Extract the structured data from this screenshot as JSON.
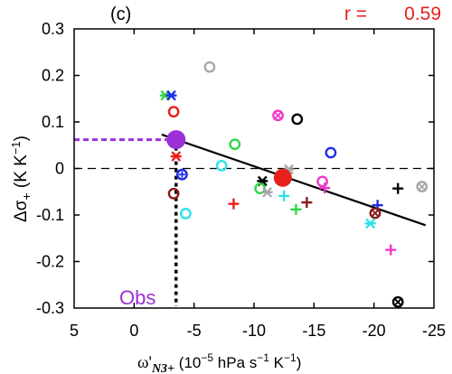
{
  "chart_data": {
    "type": "scatter",
    "panel_label": "(c)",
    "r_label": "r =",
    "r_value": "0.59",
    "r_color": "#e8201c",
    "ylabel_main": "Δσ",
    "ylabel_sub": "+",
    "ylabel_units": "(K K",
    "ylabel_units_sup": "−1",
    "ylabel_units_end": ")",
    "xlabel_main": "ω'",
    "xlabel_sub": "N3+",
    "xlabel_units": "(10",
    "xlabel_units_sup1": "−5",
    "xlabel_units_mid": " hPa s",
    "xlabel_units_sup2": "−1",
    "xlabel_units_end": " K",
    "xlabel_units_sup3": "−1",
    "xlabel_units_close": ")",
    "xlim": [
      5,
      -25
    ],
    "ylim": [
      -0.3,
      0.3
    ],
    "x_ticks": [
      5,
      0,
      -5,
      -10,
      -15,
      -20,
      -25
    ],
    "x_tick_labels": [
      "5",
      "0",
      "-5",
      "-10",
      "-15",
      "-20",
      "-25"
    ],
    "y_ticks": [
      -0.3,
      -0.2,
      -0.1,
      0,
      0.1,
      0.2,
      0.3
    ],
    "y_tick_labels": [
      "-0.3",
      "-0.2",
      "-0.1",
      "0",
      "0.1",
      "0.2",
      "0.3"
    ],
    "zero_line": true,
    "regression": {
      "x": [
        -2.3,
        -24.3
      ],
      "y": [
        0.073,
        -0.122
      ],
      "color": "#000000"
    },
    "obs": {
      "label": "Obs",
      "x": -3.5,
      "y": 0.062,
      "color": "#9b30d9",
      "lower_x": -3.5
    },
    "points": [
      {
        "x": -6.3,
        "y": 0.218,
        "marker": "o",
        "color": "#a8a8a8"
      },
      {
        "x": -2.6,
        "y": 0.157,
        "marker": "*",
        "color": "#2fd84a"
      },
      {
        "x": -3.1,
        "y": 0.157,
        "marker": "*",
        "color": "#1c2ee6"
      },
      {
        "x": -3.3,
        "y": 0.122,
        "marker": "o",
        "color": "#e8201c"
      },
      {
        "x": -12.0,
        "y": 0.114,
        "marker": "ox",
        "color": "#ee38c8"
      },
      {
        "x": -13.6,
        "y": 0.106,
        "marker": "o",
        "color": "#000000"
      },
      {
        "x": -8.4,
        "y": 0.052,
        "marker": "o",
        "color": "#2fd84a"
      },
      {
        "x": -16.4,
        "y": 0.034,
        "marker": "o",
        "color": "#1c2ee6"
      },
      {
        "x": -3.5,
        "y": 0.026,
        "marker": "*",
        "color": "#e8201c"
      },
      {
        "x": -7.3,
        "y": 0.006,
        "marker": "o",
        "color": "#2fe3e8"
      },
      {
        "x": -12.9,
        "y": -0.002,
        "marker": "*",
        "color": "#a8a8a8"
      },
      {
        "x": -4.0,
        "y": -0.013,
        "marker": "o+",
        "color": "#1c2ee6"
      },
      {
        "x": -10.7,
        "y": -0.027,
        "marker": "*",
        "color": "#000000"
      },
      {
        "x": -15.7,
        "y": -0.028,
        "marker": "o",
        "color": "#ee38c8"
      },
      {
        "x": -15.9,
        "y": -0.042,
        "marker": "+",
        "color": "#ee38c8"
      },
      {
        "x": -10.5,
        "y": -0.043,
        "marker": "o",
        "color": "#2fd84a"
      },
      {
        "x": -11.1,
        "y": -0.051,
        "marker": "*",
        "color": "#a8a8a8"
      },
      {
        "x": -3.3,
        "y": -0.054,
        "marker": "o",
        "color": "#8b1a1a"
      },
      {
        "x": -12.5,
        "y": -0.059,
        "marker": "+",
        "color": "#2fe3e8"
      },
      {
        "x": -24.0,
        "y": -0.039,
        "marker": "ox",
        "color": "#a8a8a8"
      },
      {
        "x": -22.0,
        "y": -0.043,
        "marker": "+",
        "color": "#000000"
      },
      {
        "x": -14.4,
        "y": -0.073,
        "marker": "+",
        "color": "#8b1a1a"
      },
      {
        "x": -8.3,
        "y": -0.076,
        "marker": "+",
        "color": "#e8201c"
      },
      {
        "x": -20.3,
        "y": -0.079,
        "marker": "+",
        "color": "#1c2ee6"
      },
      {
        "x": -13.5,
        "y": -0.088,
        "marker": "+",
        "color": "#2fd84a"
      },
      {
        "x": -4.3,
        "y": -0.097,
        "marker": "o",
        "color": "#2fe3e8"
      },
      {
        "x": -20.1,
        "y": -0.096,
        "marker": "ox",
        "color": "#8b1a1a"
      },
      {
        "x": -19.7,
        "y": -0.118,
        "marker": "*",
        "color": "#2fe3e8"
      },
      {
        "x": -21.4,
        "y": -0.175,
        "marker": "+",
        "color": "#ee38c8"
      },
      {
        "x": -22.0,
        "y": -0.287,
        "marker": "ox",
        "color": "#000000"
      }
    ],
    "highlight": {
      "x": -12.4,
      "y": -0.02,
      "color": "#e8201c"
    }
  }
}
